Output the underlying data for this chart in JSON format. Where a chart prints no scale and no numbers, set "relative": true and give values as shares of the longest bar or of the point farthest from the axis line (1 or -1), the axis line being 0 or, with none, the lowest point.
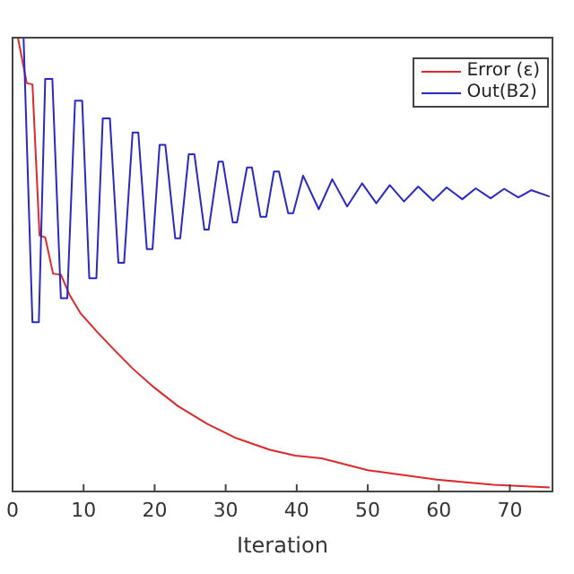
{
  "chart_data": {
    "type": "line",
    "xlabel": "Iteration",
    "relative": true,
    "xlim": [
      0,
      76
    ],
    "xticks": [
      0,
      10,
      20,
      30,
      40,
      50,
      60,
      70
    ],
    "tick_labels": "x",
    "legend": "top right",
    "marker": "none",
    "line_style": "solid",
    "series": [
      {
        "name": "Error (ε)",
        "color": "#e02828",
        "x": [
          0.75,
          2,
          2.8,
          3.8,
          4.6,
          5.7,
          6.8,
          8,
          9.6,
          12,
          14.5,
          16.9,
          19.7,
          23.3,
          27.4,
          31.4,
          36.2,
          39.8,
          43.5,
          50,
          59.7,
          67.7,
          75.6
        ],
        "values": [
          1,
          0.9,
          0.897,
          0.564,
          0.56,
          0.48,
          0.478,
          0.434,
          0.392,
          0.35,
          0.309,
          0.271,
          0.232,
          0.188,
          0.149,
          0.118,
          0.092,
          0.079,
          0.073,
          0.047,
          0.026,
          0.015,
          0.009
        ]
      },
      {
        "name": "Out(B2)",
        "color": "#2828c8",
        "x": [
          1.55,
          2.8,
          3.7,
          4.6,
          5.6,
          6.8,
          7.7,
          8.8,
          9.8,
          10.8,
          11.8,
          12.7,
          13.7,
          14.9,
          15.7,
          16.9,
          17.7,
          18.9,
          19.7,
          20.7,
          21.5,
          22.9,
          23.6,
          24.8,
          25.6,
          27,
          27.6,
          29,
          29.6,
          31,
          31.6,
          33,
          33.7,
          34.9,
          35.7,
          36.8,
          37.5,
          38.8,
          39.5,
          40.9,
          43.1,
          45,
          47.1,
          49.2,
          51.2,
          53.1,
          55.1,
          57.1,
          59.2,
          61.1,
          63.3,
          65.2,
          67.3,
          69.2,
          71.2,
          73,
          75.6
        ],
        "values": [
          1,
          0.373,
          0.373,
          0.909,
          0.909,
          0.426,
          0.426,
          0.861,
          0.861,
          0.47,
          0.47,
          0.822,
          0.822,
          0.504,
          0.504,
          0.791,
          0.791,
          0.534,
          0.534,
          0.764,
          0.764,
          0.558,
          0.558,
          0.743,
          0.743,
          0.577,
          0.577,
          0.727,
          0.727,
          0.593,
          0.593,
          0.714,
          0.714,
          0.605,
          0.605,
          0.705,
          0.705,
          0.613,
          0.613,
          0.696,
          0.622,
          0.688,
          0.628,
          0.679,
          0.635,
          0.675,
          0.639,
          0.672,
          0.641,
          0.67,
          0.644,
          0.668,
          0.646,
          0.667,
          0.648,
          0.664,
          0.65
        ]
      }
    ]
  }
}
